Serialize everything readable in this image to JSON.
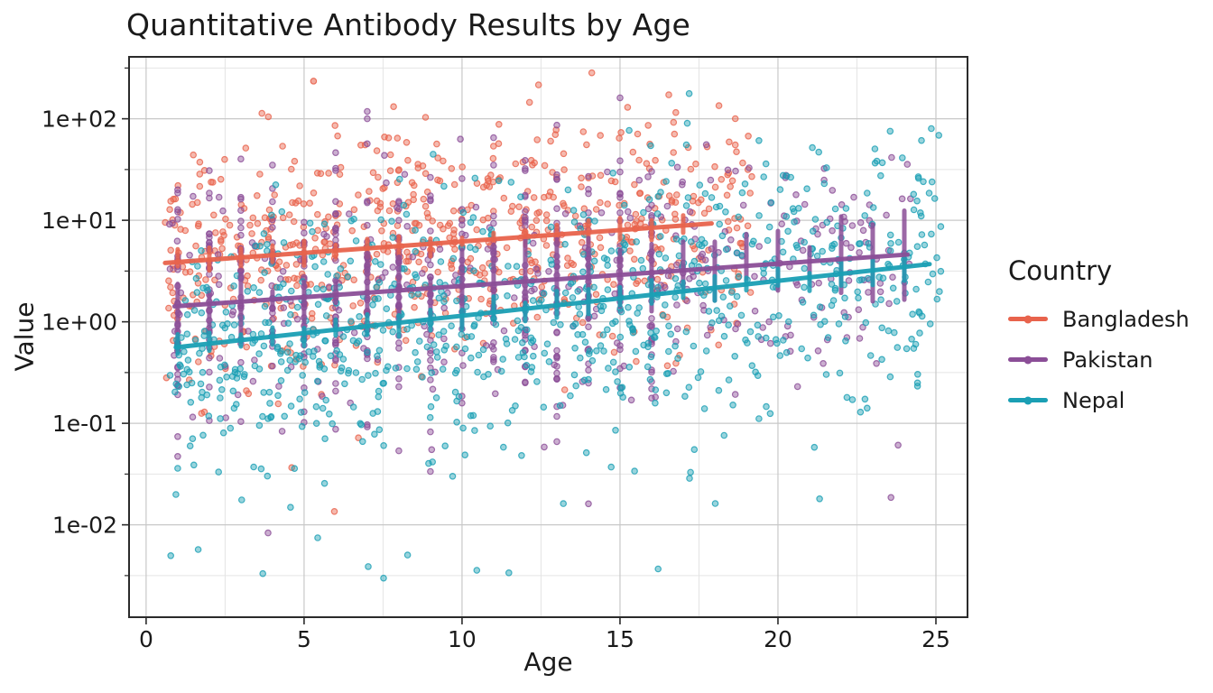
{
  "title": "Quantitative Antibody Results by Age",
  "legend": {
    "title": "Country",
    "entries": [
      {
        "label": "Bangladesh",
        "color": "#E8634C"
      },
      {
        "label": "Pakistan",
        "color": "#8B4E97"
      },
      {
        "label": "Nepal",
        "color": "#1A9FB4"
      }
    ]
  },
  "chart_data": {
    "type": "scatter",
    "title": "Quantitative Antibody Results by Age",
    "xlabel": "Age",
    "ylabel": "Value",
    "grid": true,
    "legend_position": "right",
    "background": "#ffffff",
    "grid_major_color": "#c8c8c8",
    "grid_minor_color": "#e4e4e4",
    "panel_border_color": "#2b2b2b",
    "x_axis": {
      "label": "Age",
      "domain": [
        -0.54,
        26.0
      ],
      "major_ticks": [
        0,
        5,
        10,
        15,
        20,
        25
      ],
      "minor_ticks": [
        2.5,
        7.5,
        12.5,
        17.5,
        22.5
      ]
    },
    "y_axis": {
      "label": "Value",
      "scale": "log10",
      "log_domain": [
        -2.91,
        2.61
      ],
      "major_ticks": [
        {
          "log10": 2,
          "label": "1e+02"
        },
        {
          "log10": 1,
          "label": "1e+01"
        },
        {
          "log10": 0,
          "label": "1e+00"
        },
        {
          "log10": -1,
          "label": "1e-01"
        },
        {
          "log10": -2,
          "label": "1e-02"
        }
      ],
      "minor_ticks_log10": [
        2.5,
        1.5,
        0.5,
        -0.5,
        -1.5,
        -2.5
      ]
    },
    "series": [
      {
        "name": "Bangladesh",
        "color": "#E8634C",
        "n_points": 680,
        "ages": {
          "mode": "uniform",
          "min": 0.6,
          "max": 19.2
        },
        "log10_value": {
          "intercept": 0.564,
          "slope": 0.0226,
          "sd": 0.56
        },
        "low_tail": {
          "frac": 0.012,
          "shift": 1.6
        },
        "trend_line": {
          "age_start": 0.6,
          "value_start": 3.8,
          "age_end": 17.9,
          "value_end": 9.3
        },
        "error_bars": {
          "ages": [
            1,
            2,
            3,
            4,
            5,
            6,
            7,
            8,
            9,
            10,
            11,
            12,
            13,
            14,
            15,
            16,
            17
          ],
          "half_len_log10": [
            0.03,
            0.13
          ]
        }
      },
      {
        "name": "Pakistan",
        "color": "#8B4E97",
        "n_points": 730,
        "ages": {
          "mode": "integer_mix",
          "int_min": 1,
          "int_max": 16,
          "int_frac": 0.6,
          "cont_frac": 0.18,
          "cont_min": 0.7,
          "cont_max": 16.0,
          "older_min": 16.0,
          "older_max": 24.2
        },
        "log10_value": {
          "intercept": 0.131,
          "slope": 0.0222,
          "sd": 0.6
        },
        "low_tail": {
          "frac": 0.015,
          "shift": 1.4
        },
        "trend_line": {
          "age_start": 0.9,
          "value_start": 1.42,
          "age_end": 24.1,
          "value_end": 4.6
        },
        "error_bars": {
          "ages": [
            1,
            2,
            3,
            4,
            5,
            6,
            7,
            8,
            9,
            10,
            11,
            12,
            13,
            14,
            15,
            16,
            17,
            18,
            19,
            20,
            21,
            22,
            23,
            24
          ],
          "half_len_log10": [
            0.07,
            0.45
          ]
        }
      },
      {
        "name": "Nepal",
        "color": "#1A9FB4",
        "n_points": 880,
        "ages": {
          "mode": "uniform",
          "min": 0.7,
          "max": 25.2
        },
        "log10_value": {
          "intercept": -0.281,
          "slope": 0.0343,
          "sd": 0.64
        },
        "low_tail": {
          "frac": 0.05,
          "shift": 1.5
        },
        "trend_line": {
          "age_start": 0.94,
          "value_start": 0.56,
          "age_end": 24.8,
          "value_end": 3.7
        },
        "error_bars": {
          "ages": [
            1,
            2,
            3,
            4,
            5,
            6,
            7,
            8,
            9,
            10,
            11,
            12,
            13,
            14,
            15,
            16,
            17,
            18,
            19,
            20,
            21,
            22,
            23,
            24
          ],
          "half_len_log10": [
            0.04,
            0.16
          ]
        }
      }
    ],
    "highlight_points": [
      {
        "series": "Bangladesh",
        "age": 5.3,
        "value": 235
      }
    ]
  }
}
